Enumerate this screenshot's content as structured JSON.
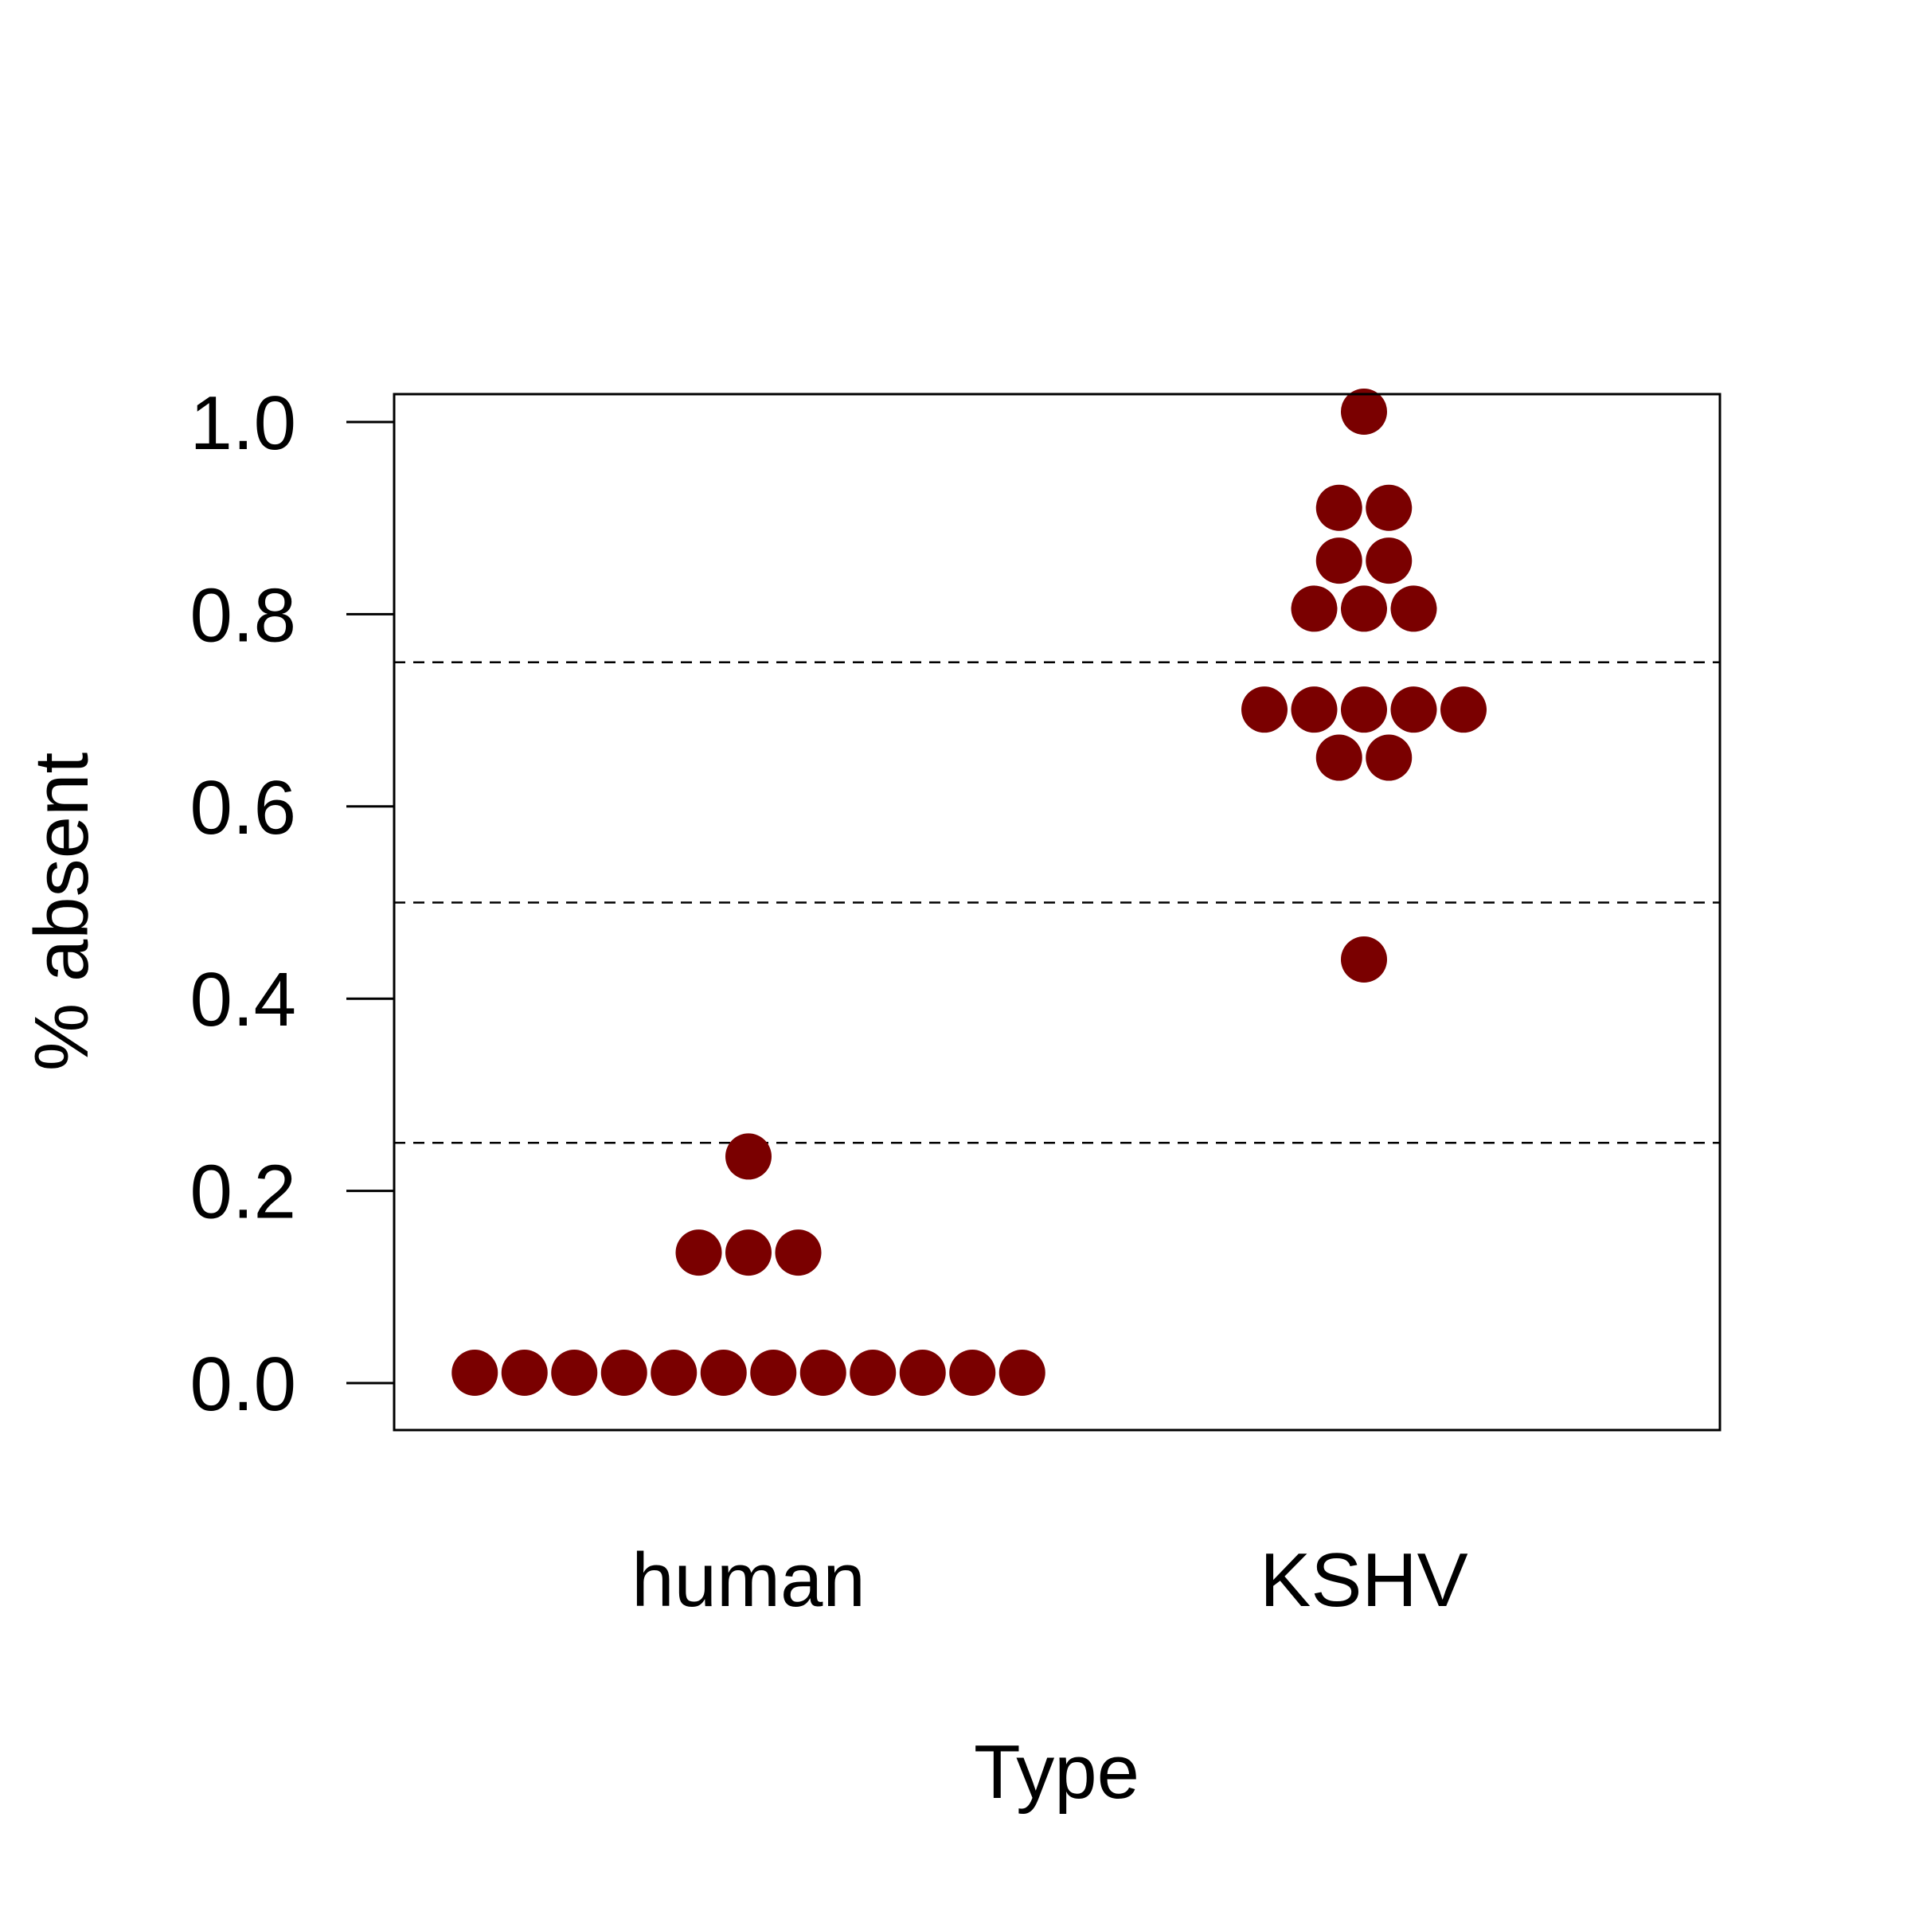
{
  "chart_data": {
    "type": "scatter",
    "subtype": "beeswarm",
    "xlabel": "Type",
    "ylabel": "% absent",
    "categories": [
      "human",
      "KSHV"
    ],
    "ylim": [
      -0.05,
      1.03
    ],
    "y_ticks": [
      {
        "value": 0.0,
        "label": "0.0"
      },
      {
        "value": 0.2,
        "label": "0.2"
      },
      {
        "value": 0.4,
        "label": "0.4"
      },
      {
        "value": 0.6,
        "label": "0.6"
      },
      {
        "value": 0.8,
        "label": "0.8"
      },
      {
        "value": 1.0,
        "label": "1.0"
      }
    ],
    "reference_lines": [
      0.25,
      0.5,
      0.75
    ],
    "grid": false,
    "point_color": "#7A0000",
    "groups": [
      {
        "category": "human",
        "values": [
          0,
          0,
          0,
          0,
          0,
          0,
          0,
          0,
          0,
          0,
          0,
          0,
          0.125,
          0.125,
          0.125,
          0.225
        ]
      },
      {
        "category": "KSHV",
        "values": [
          0.43,
          0.64,
          0.64,
          0.69,
          0.69,
          0.69,
          0.69,
          0.69,
          0.795,
          0.795,
          0.795,
          0.845,
          0.845,
          0.9,
          0.9,
          1.0
        ]
      }
    ]
  }
}
